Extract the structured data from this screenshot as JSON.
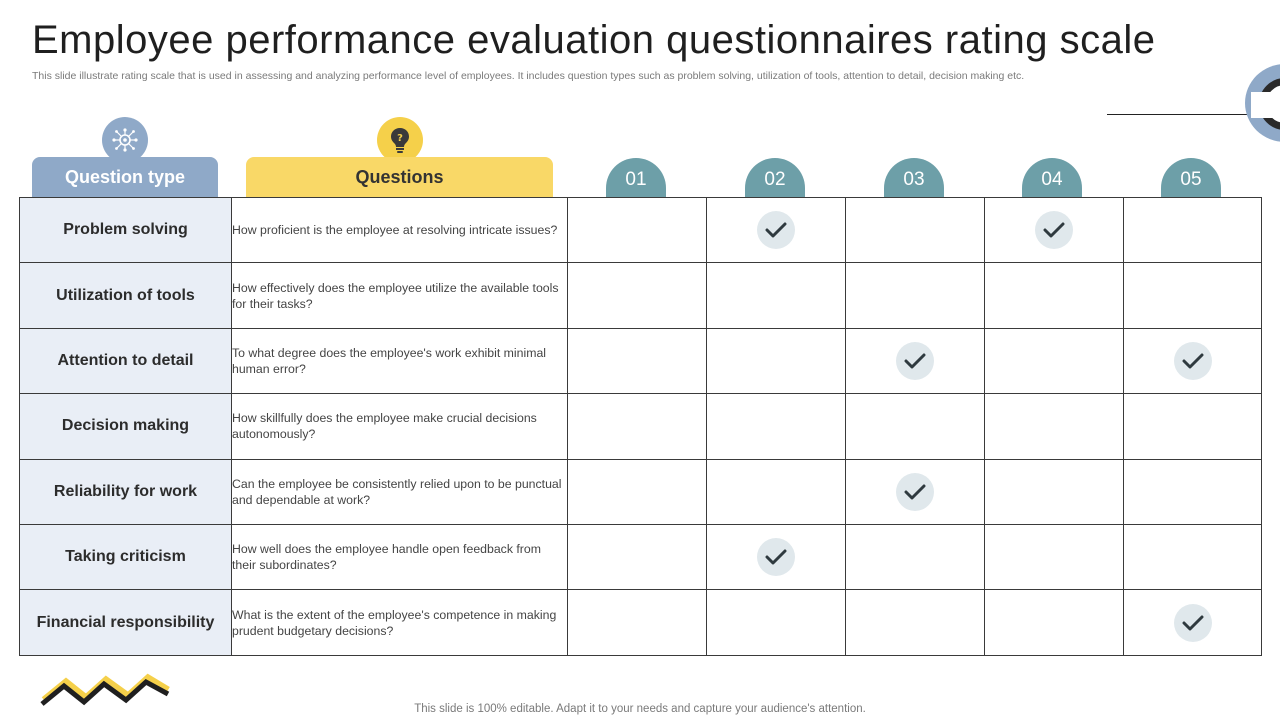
{
  "header": {
    "title": "Employee performance evaluation questionnaires rating scale",
    "subtitle": "This slide illustrate rating scale that is used in assessing and analyzing performance level of employees. It includes question types such as problem solving, utilization of tools, attention to detail, decision making etc."
  },
  "columns": {
    "question_type_label": "Question type",
    "questions_label": "Questions",
    "question_type_icon": "network-gear-icon",
    "questions_icon": "lightbulb-icon",
    "scale": [
      "01",
      "02",
      "03",
      "04",
      "05"
    ]
  },
  "rows": [
    {
      "type": "Problem solving",
      "question": "How proficient is the employee at resolving intricate issues?",
      "checks": [
        2,
        4
      ]
    },
    {
      "type": "Utilization of tools",
      "question": "How effectively does the employee utilize the available tools for their tasks?",
      "checks": []
    },
    {
      "type": "Attention to detail",
      "question": "To what degree does the employee's work exhibit minimal human error?",
      "checks": [
        3,
        5
      ]
    },
    {
      "type": "Decision making",
      "question": "How skillfully does the employee make crucial decisions autonomously?",
      "checks": []
    },
    {
      "type": "Reliability for work",
      "question": "Can the employee be consistently relied upon to be punctual and dependable at work?",
      "checks": [
        3
      ]
    },
    {
      "type": "Taking criticism",
      "question": "How well does the employee handle open feedback from their subordinates?",
      "checks": [
        2
      ]
    },
    {
      "type": "Financial responsibility",
      "question": "What is the extent of the employee's competence in making prudent budgetary decisions?",
      "checks": [
        5
      ]
    }
  ],
  "footer": {
    "note": "This slide is 100% editable. Adapt it to your needs and capture your audience's attention."
  },
  "colors": {
    "blue_accent": "#8fa9c8",
    "yellow_accent": "#f9d867",
    "teal_scale": "#6d9fa8",
    "row_label_bg": "#e9eef6",
    "check_bg": "#e0e8ec",
    "check_mark": "#2f3a3f"
  }
}
